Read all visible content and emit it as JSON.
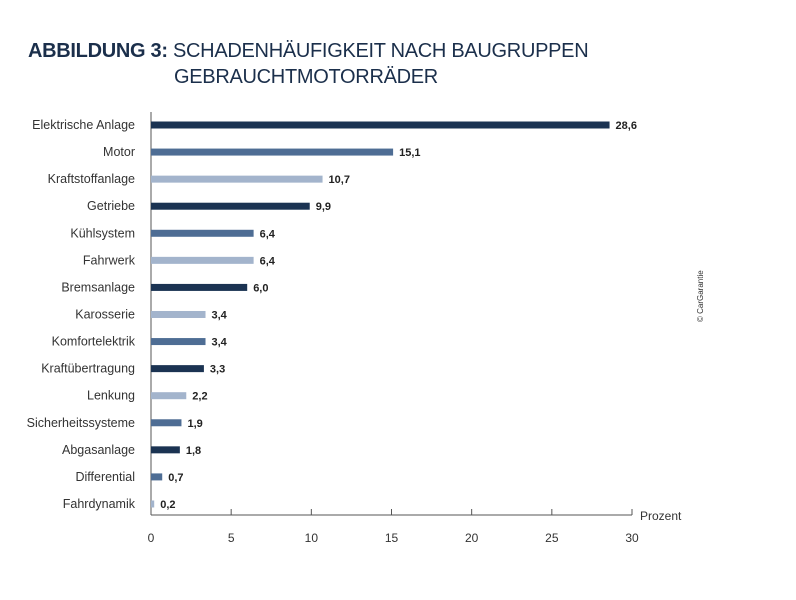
{
  "title": {
    "prefix": "ABBILDUNG 3:",
    "line1": "SCHADENHÄUFIGKEIT NACH BAUGRUPPEN",
    "line2": "GEBRAUCHTMOTORRÄDER"
  },
  "copyright": "© CarGarantie",
  "colors": {
    "dark": "#1b3352",
    "medium": "#4e6d94",
    "light": "#a3b4cc",
    "axis": "#555555"
  },
  "chart_data": {
    "type": "bar",
    "orientation": "horizontal",
    "categories": [
      "Elektrische Anlage",
      "Motor",
      "Kraftstoffanlage",
      "Getriebe",
      "Kühlsystem",
      "Fahrwerk",
      "Bremsanlage",
      "Karosserie",
      "Komfortelektrik",
      "Kraftübertragung",
      "Lenkung",
      "Sicherheitssysteme",
      "Abgasanlage",
      "Differential",
      "Fahrdynamik"
    ],
    "values": [
      28.6,
      15.1,
      10.7,
      9.9,
      6.4,
      6.4,
      6.0,
      3.4,
      3.4,
      3.3,
      2.2,
      1.9,
      1.8,
      0.7,
      0.2
    ],
    "value_labels": [
      "28,6",
      "15,1",
      "10,7",
      "9,9",
      "6,4",
      "6,4",
      "6,0",
      "3,4",
      "3,4",
      "3,3",
      "2,2",
      "1,9",
      "1,8",
      "0,7",
      "0,2"
    ],
    "bar_shades": [
      "dark",
      "medium",
      "light",
      "dark",
      "medium",
      "light",
      "dark",
      "light",
      "medium",
      "dark",
      "light",
      "medium",
      "dark",
      "medium",
      "light"
    ],
    "xlim": [
      0,
      30
    ],
    "xticks": [
      0,
      5,
      10,
      15,
      20,
      25,
      30
    ],
    "xlabel": "Prozent",
    "ylabel": "",
    "grid": false,
    "legend": "none"
  }
}
